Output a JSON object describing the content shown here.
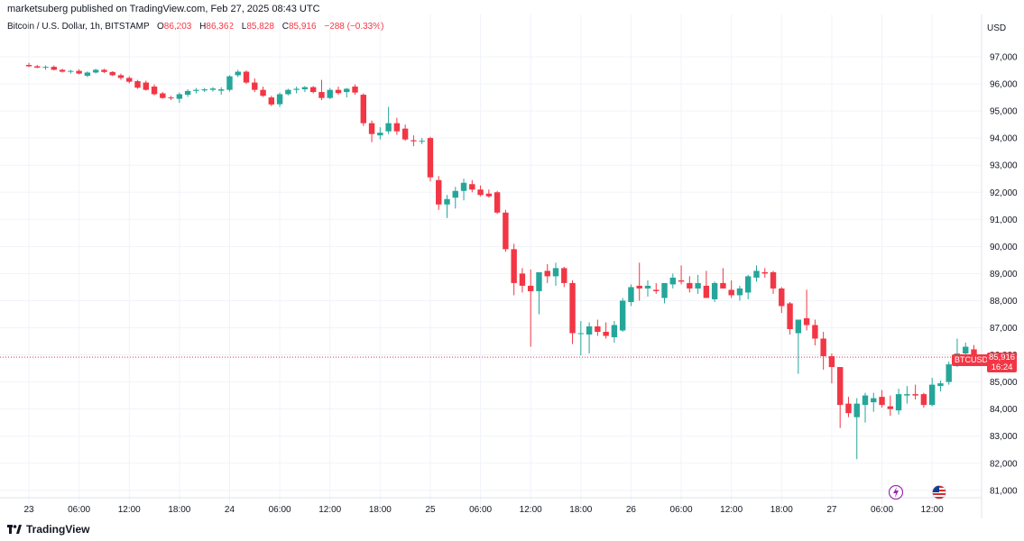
{
  "header": {
    "author": "marketsuberg",
    "published_text": "published on TradingView.com, Feb 27, 2025 08:43 UTC",
    "symbol_desc": "Bitcoin / U.S. Dollar, 1h, BITSTAMP",
    "o_label": "O",
    "o_value": "86,203",
    "h_label": "H",
    "h_value": "86,362",
    "l_label": "L",
    "l_value": "85,828",
    "c_label": "C",
    "c_value": "85,916",
    "change": "−288 (−0.33%)",
    "currency": "USD"
  },
  "footer": {
    "brand": "TradingView"
  },
  "price_tag": {
    "symbol": "BTCUSD",
    "price": "85,916",
    "countdown": "16:24"
  },
  "icons": [
    "lightning-event-icon",
    "us-flag-icon"
  ],
  "colors": {
    "up": "#26a69a",
    "down": "#f23645",
    "grid": "#f0f3fa",
    "text": "#131722"
  },
  "chart_data": {
    "type": "candlestick",
    "y_ticks": [
      "97,000",
      "96,000",
      "95,000",
      "94,000",
      "93,000",
      "92,000",
      "91,000",
      "90,000",
      "89,000",
      "88,000",
      "87,000",
      "86,000",
      "85,000",
      "84,000",
      "83,000",
      "82,000",
      "81,000"
    ],
    "x_ticks": [
      {
        "label": "23",
        "i": 0
      },
      {
        "label": "06:00",
        "i": 6
      },
      {
        "label": "12:00",
        "i": 12
      },
      {
        "label": "18:00",
        "i": 18
      },
      {
        "label": "24",
        "i": 24
      },
      {
        "label": "06:00",
        "i": 30
      },
      {
        "label": "12:00",
        "i": 36
      },
      {
        "label": "18:00",
        "i": 42
      },
      {
        "label": "25",
        "i": 48
      },
      {
        "label": "06:00",
        "i": 54
      },
      {
        "label": "12:00",
        "i": 60
      },
      {
        "label": "18:00",
        "i": 66
      },
      {
        "label": "26",
        "i": 72
      },
      {
        "label": "06:00",
        "i": 78
      },
      {
        "label": "12:00",
        "i": 84
      },
      {
        "label": "18:00",
        "i": 90
      },
      {
        "label": "27",
        "i": 96
      },
      {
        "label": "06:00",
        "i": 102
      },
      {
        "label": "12:00",
        "i": 108
      }
    ],
    "ylim": [
      80500,
      97600
    ],
    "last_price": 85916,
    "candles": [
      [
        96700,
        96780,
        96620,
        96650
      ],
      [
        96650,
        96700,
        96580,
        96600
      ],
      [
        96600,
        96680,
        96520,
        96630
      ],
      [
        96630,
        96680,
        96500,
        96520
      ],
      [
        96520,
        96560,
        96420,
        96450
      ],
      [
        96450,
        96520,
        96380,
        96480
      ],
      [
        96480,
        96540,
        96350,
        96380
      ],
      [
        96300,
        96460,
        96250,
        96420
      ],
      [
        96420,
        96560,
        96380,
        96520
      ],
      [
        96520,
        96560,
        96400,
        96440
      ],
      [
        96440,
        96470,
        96290,
        96320
      ],
      [
        96320,
        96380,
        96150,
        96220
      ],
      [
        96220,
        96280,
        96020,
        96080
      ],
      [
        96100,
        96150,
        95820,
        95860
      ],
      [
        96050,
        96120,
        95750,
        95780
      ],
      [
        95900,
        95980,
        95580,
        95620
      ],
      [
        95650,
        95700,
        95450,
        95480
      ],
      [
        95500,
        95560,
        95400,
        95470
      ],
      [
        95450,
        95680,
        95300,
        95620
      ],
      [
        95600,
        95800,
        95520,
        95740
      ],
      [
        95740,
        95850,
        95650,
        95780
      ],
      [
        95760,
        95850,
        95700,
        95800
      ],
      [
        95780,
        95880,
        95720,
        95830
      ],
      [
        95750,
        95880,
        95600,
        95800
      ],
      [
        95780,
        96320,
        95720,
        96280
      ],
      [
        96320,
        96520,
        96250,
        96450
      ],
      [
        96450,
        96500,
        96000,
        96050
      ],
      [
        96050,
        96200,
        95700,
        95780
      ],
      [
        95780,
        95900,
        95520,
        95560
      ],
      [
        95500,
        95560,
        95180,
        95240
      ],
      [
        95250,
        95680,
        95150,
        95620
      ],
      [
        95620,
        95820,
        95580,
        95780
      ],
      [
        95780,
        95900,
        95650,
        95820
      ],
      [
        95800,
        95920,
        95700,
        95880
      ],
      [
        95880,
        95920,
        95650,
        95700
      ],
      [
        95700,
        96150,
        95400,
        95480
      ],
      [
        95480,
        95850,
        95440,
        95780
      ],
      [
        95780,
        95900,
        95600,
        95660
      ],
      [
        95700,
        95850,
        95500,
        95820
      ],
      [
        95900,
        95980,
        95600,
        95680
      ],
      [
        95600,
        95650,
        94450,
        94550
      ],
      [
        94550,
        94650,
        93850,
        94150
      ],
      [
        94100,
        94400,
        93950,
        94200
      ],
      [
        94250,
        95150,
        94150,
        94550
      ],
      [
        94550,
        94750,
        94120,
        94250
      ],
      [
        94350,
        94500,
        93900,
        93950
      ],
      [
        93920,
        94100,
        93700,
        93880
      ],
      [
        93900,
        94000,
        93780,
        93900
      ],
      [
        94000,
        94050,
        92400,
        92550
      ],
      [
        92450,
        92600,
        91350,
        91550
      ],
      [
        91550,
        91900,
        91050,
        91750
      ],
      [
        91800,
        92200,
        91400,
        92050
      ],
      [
        92050,
        92500,
        91700,
        92350
      ],
      [
        92300,
        92450,
        92000,
        92100
      ],
      [
        92100,
        92250,
        91850,
        91900
      ],
      [
        91950,
        92100,
        91800,
        91850
      ],
      [
        92000,
        92050,
        91200,
        91250
      ],
      [
        91250,
        91350,
        89800,
        89900
      ],
      [
        89900,
        90100,
        88200,
        88650
      ],
      [
        89000,
        89200,
        88300,
        88550
      ],
      [
        88550,
        89150,
        86300,
        88350
      ],
      [
        88350,
        88950,
        87500,
        89050
      ],
      [
        89100,
        89350,
        88650,
        88900
      ],
      [
        88900,
        89400,
        88550,
        89200
      ],
      [
        89200,
        89250,
        88500,
        88650
      ],
      [
        88650,
        88750,
        86400,
        86800
      ],
      [
        86800,
        87250,
        85980,
        86800
      ],
      [
        86750,
        87200,
        86050,
        87050
      ],
      [
        87050,
        87300,
        86700,
        86850
      ],
      [
        86850,
        87200,
        86600,
        86700
      ],
      [
        86650,
        87250,
        86450,
        87100
      ],
      [
        86900,
        88100,
        86850,
        88000
      ],
      [
        87950,
        88600,
        87800,
        88500
      ],
      [
        88550,
        89400,
        88000,
        88450
      ],
      [
        88450,
        88750,
        88150,
        88550
      ],
      [
        88400,
        88650,
        88250,
        88350
      ],
      [
        88100,
        88550,
        87900,
        88650
      ],
      [
        88600,
        89000,
        88450,
        88850
      ],
      [
        88750,
        89300,
        88600,
        88700
      ],
      [
        88650,
        88900,
        88300,
        88450
      ],
      [
        88450,
        88950,
        88250,
        88650
      ],
      [
        88550,
        89100,
        88100,
        88100
      ],
      [
        88050,
        88700,
        87950,
        88650
      ],
      [
        88650,
        89200,
        88450,
        88450
      ],
      [
        88400,
        88750,
        88100,
        88200
      ],
      [
        88200,
        88550,
        88000,
        88450
      ],
      [
        88300,
        88950,
        88050,
        88900
      ],
      [
        88850,
        89300,
        88700,
        89100
      ],
      [
        89050,
        89200,
        88850,
        89000
      ],
      [
        89050,
        89100,
        88250,
        88450
      ],
      [
        88450,
        88500,
        87550,
        87800
      ],
      [
        87900,
        87950,
        86750,
        86950
      ],
      [
        86800,
        87300,
        85300,
        87300
      ],
      [
        87350,
        88400,
        86900,
        87100
      ],
      [
        87100,
        87300,
        86350,
        86600
      ],
      [
        86600,
        86850,
        85450,
        85950
      ],
      [
        85950,
        86050,
        84950,
        85550
      ],
      [
        85550,
        85550,
        83300,
        84150
      ],
      [
        84200,
        84450,
        83700,
        83850
      ],
      [
        83700,
        84400,
        82150,
        84200
      ],
      [
        84150,
        84600,
        83500,
        84500
      ],
      [
        84250,
        84600,
        83900,
        84400
      ],
      [
        84450,
        84700,
        84050,
        84150
      ],
      [
        84100,
        84500,
        83750,
        84000
      ],
      [
        83950,
        84750,
        83800,
        84550
      ],
      [
        84500,
        84850,
        84200,
        84550
      ],
      [
        84550,
        84900,
        84350,
        84500
      ],
      [
        84550,
        84600,
        84050,
        84150
      ],
      [
        84150,
        85150,
        84100,
        84900
      ],
      [
        84850,
        85050,
        84650,
        84950
      ],
      [
        85000,
        85750,
        84900,
        85650
      ],
      [
        85650,
        86600,
        85550,
        86050
      ],
      [
        86050,
        86450,
        85850,
        86300
      ],
      [
        86203,
        86362,
        85828,
        85916
      ]
    ]
  }
}
